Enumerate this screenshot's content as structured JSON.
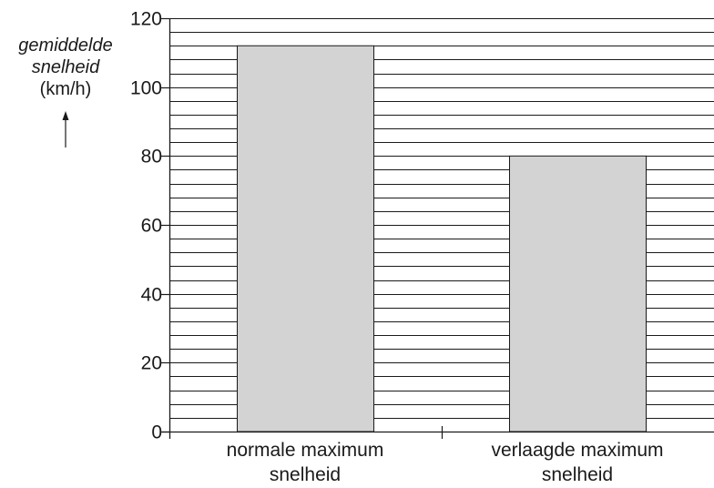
{
  "chart_data": {
    "type": "bar",
    "categories": [
      [
        "normale maximum",
        "snelheid"
      ],
      [
        "verlaagde maximum",
        "snelheid"
      ]
    ],
    "values": [
      112,
      80
    ],
    "title": "",
    "ylabel_lines": [
      "gemiddelde",
      "snelheid"
    ],
    "ylabel_unit": "(km/h)",
    "ylabel_arrow": "↑",
    "ylim": [
      0,
      120
    ],
    "major_ticks": [
      0,
      20,
      40,
      60,
      80,
      100,
      120
    ],
    "minor_step": 4,
    "grid": true,
    "bar_color": "#d3d3d3",
    "line_color": "#1a1a1a"
  }
}
